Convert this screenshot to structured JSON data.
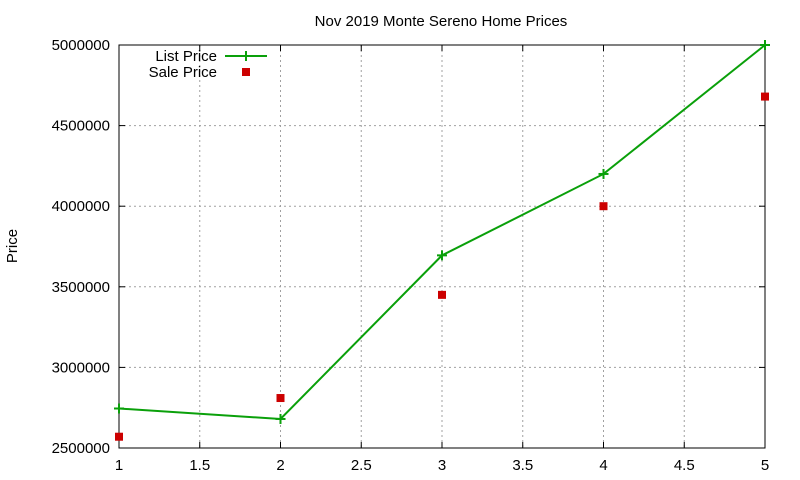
{
  "chart_data": {
    "type": "line",
    "title": "Nov 2019 Monte Sereno Home Prices",
    "xlabel": "",
    "ylabel": "Price",
    "xlim": [
      1,
      5
    ],
    "ylim": [
      2500000,
      5000000
    ],
    "x_ticks": [
      "1",
      "1.5",
      "2",
      "2.5",
      "3",
      "3.5",
      "4",
      "4.5",
      "5"
    ],
    "y_ticks": [
      "2500000",
      "3000000",
      "3500000",
      "4000000",
      "4500000",
      "5000000"
    ],
    "grid": true,
    "legend_position": "top-left",
    "series": [
      {
        "name": "List Price",
        "style": "line-with-plus-markers",
        "color": "#0aa00a",
        "x": [
          1,
          2,
          3,
          4,
          5
        ],
        "values": [
          2745000,
          2680000,
          3695000,
          4200000,
          5000000
        ]
      },
      {
        "name": "Sale Price",
        "style": "square-markers",
        "color": "#cc0000",
        "x": [
          1,
          2,
          3,
          4,
          5
        ],
        "values": [
          2570000,
          2810000,
          3450000,
          4000000,
          4680000
        ]
      }
    ]
  }
}
